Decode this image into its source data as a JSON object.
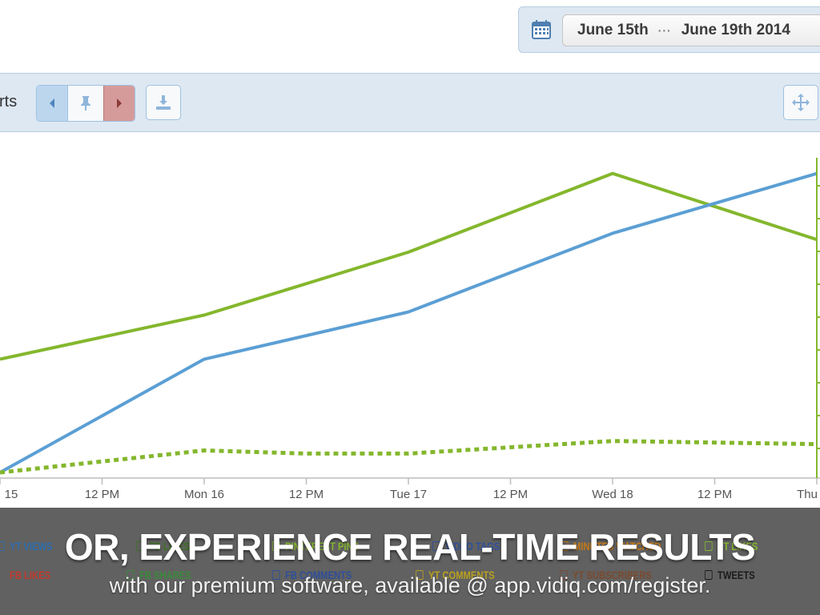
{
  "date_range": {
    "start": "June 15th",
    "separator": "···",
    "end": "June 19th 2014",
    "icon": "calendar-icon"
  },
  "toolbar": {
    "title_fragment": "rts",
    "prev_icon": "caret-left-icon",
    "pin_icon": "pin-icon",
    "next_icon": "caret-right-icon",
    "download_icon": "download-icon",
    "move_icon": "move-icon"
  },
  "colors": {
    "blue_series": "#5b9fd4",
    "green_series": "#84b72d",
    "axis_right": "#84b72d"
  },
  "chart_data": {
    "type": "line",
    "x": [
      "15",
      "12 PM",
      "Mon 16",
      "12 PM",
      "Tue 17",
      "12 PM",
      "Wed 18",
      "12 PM",
      "Thu"
    ],
    "series": [
      {
        "style": "solid",
        "color": "#84b72d",
        "points": [
          [
            0,
            36
          ],
          [
            2,
            50
          ],
          [
            4,
            70
          ],
          [
            6,
            95
          ],
          [
            8,
            74
          ]
        ]
      },
      {
        "style": "solid",
        "color": "#5b9fd4",
        "points": [
          [
            0,
            0
          ],
          [
            2,
            36
          ],
          [
            4,
            51
          ],
          [
            6,
            76
          ],
          [
            8,
            95
          ]
        ]
      },
      {
        "style": "dotted",
        "color": "#84b72d",
        "points": [
          [
            0,
            0
          ],
          [
            2,
            7
          ],
          [
            3,
            6
          ],
          [
            4,
            6
          ],
          [
            5,
            8
          ],
          [
            6,
            10
          ],
          [
            8,
            9
          ]
        ]
      }
    ],
    "ylim": [
      0,
      100
    ],
    "grid": false
  },
  "legend": {
    "row1": [
      {
        "label": "YT VIEWS",
        "color": "#2e6fb0"
      },
      {
        "label": "FB LIKES",
        "color": "#3a6e1e"
      },
      {
        "label": "PINTEREST PINS",
        "color": "#84b72d"
      },
      {
        "label": "VIDEO TAGS",
        "color": "#2e4f9a"
      },
      {
        "label": "MINUTES WATCHED",
        "color": "#c57a15"
      },
      {
        "label": "YT LIKES",
        "color": "#84b72d"
      }
    ],
    "row2": [
      {
        "label": "FB LIKES",
        "color": "#c0392b"
      },
      {
        "label": "FB SHARES",
        "color": "#3a8a3a"
      },
      {
        "label": "FB COMMENTS",
        "color": "#2e4f9a"
      },
      {
        "label": "YT COMMENTS",
        "color": "#b8a020"
      },
      {
        "label": "YT SUBSCRIBERS",
        "color": "#7a4a2e"
      },
      {
        "label": "TWEETS",
        "color": "#1a1a1a"
      }
    ]
  },
  "overlay": {
    "headline": "OR, EXPERIENCE REAL-TIME RESULTS",
    "subline": "with our premium software, available @ app.vidiq.com/register."
  }
}
